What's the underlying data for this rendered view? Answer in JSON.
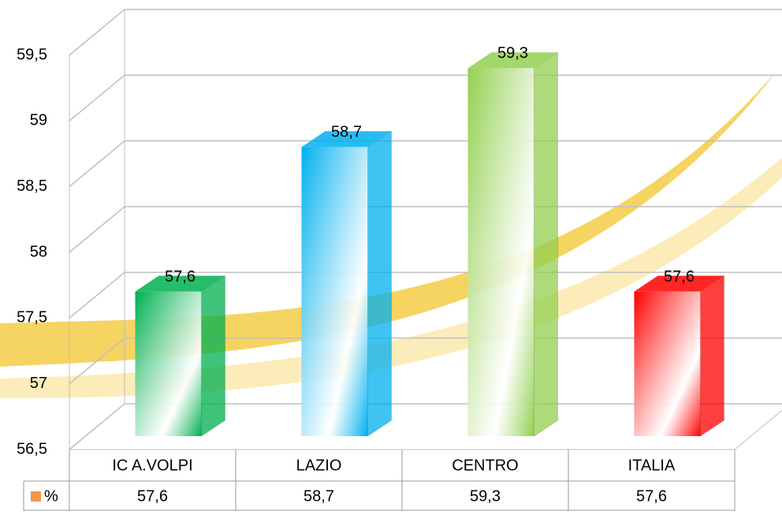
{
  "chart_data": {
    "type": "bar3d",
    "categories": [
      "IC A.VOLPI",
      "LAZIO",
      "CENTRO",
      "ITALIA"
    ],
    "series": [
      {
        "name": "%",
        "color": "#f79646",
        "values": [
          57.6,
          58.7,
          59.3,
          57.6
        ],
        "value_labels": [
          "57,6",
          "58,7",
          "59,3",
          "57,6"
        ]
      }
    ],
    "bar_colors": [
      "#00b050",
      "#00b0f0",
      "#92d050",
      "#ff0000"
    ],
    "ylim": [
      56.5,
      59.5
    ],
    "yticks": [
      {
        "value": 56.5,
        "label": "56,5"
      },
      57,
      {
        "value": 57.5,
        "label": "57,5"
      },
      58,
      {
        "value": 58.5,
        "label": "58,5"
      },
      59,
      {
        "value": 59.5,
        "label": "59,5"
      }
    ],
    "grid": true,
    "data_table": true
  }
}
